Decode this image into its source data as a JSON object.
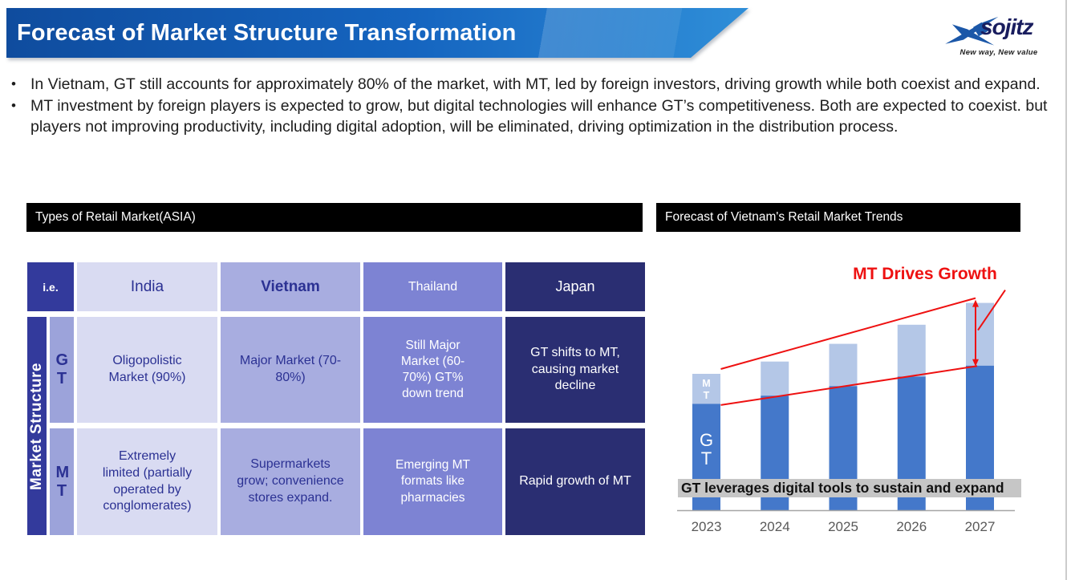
{
  "header": {
    "title": "Forecast of Market Structure Transformation",
    "logo": {
      "brand": "sojitz",
      "tagline": "New way, New value"
    }
  },
  "bullet_char": "•",
  "bullets": [
    "In Vietnam, GT still accounts for approximately 80% of the market, with MT, led by foreign investors, driving growth while both coexist and expand.",
    "MT investment by foreign players is expected to grow, but digital technologies will enhance GT’s competitiveness. Both are expected to coexist. but players not improving productivity, including digital adoption, will be eliminated, driving optimization in the distribution process."
  ],
  "table_section": {
    "title": "Types of Retail Market(ASIA)",
    "corner_label": "i.e.",
    "row_axis_label": "Market Structure",
    "columns": [
      "India",
      "Vietnam",
      "Thailand",
      "Japan"
    ],
    "rows": [
      {
        "label": "GT",
        "cells": [
          "Oligopolistic Market (90%)",
          "Major Market (70-80%)",
          "Still Major Market (60-70%) GT% down trend",
          "GT shifts to MT, causing market decline"
        ]
      },
      {
        "label": "MT",
        "cells": [
          "Extremely limited (partially operated by conglomerates)",
          "Supermarkets grow; convenience stores expand.",
          "Emerging MT formats like pharmacies",
          "Rapid growth of MT"
        ]
      }
    ]
  },
  "chart_section": {
    "title": "Forecast of Vietnam's Retail Market Trends",
    "annotation": "MT Drives Growth",
    "band_text": "GT leverages digital tools to sustain and expand"
  },
  "chart_data": {
    "type": "bar",
    "stacked": true,
    "title": "Forecast of Vietnam's Retail Market Trends",
    "categories": [
      "2023",
      "2024",
      "2025",
      "2026",
      "2027"
    ],
    "series": [
      {
        "name": "GT",
        "values": [
          78,
          84,
          91,
          98,
          106
        ],
        "color": "#4478ca"
      },
      {
        "name": "MT",
        "values": [
          22,
          25,
          31,
          38,
          46
        ],
        "color": "#b4c7e7"
      }
    ],
    "units": "index (2023 total market = 100), estimated from bar heights; no value axis shown",
    "xlabel": "",
    "ylabel": "",
    "ylim": [
      0,
      160
    ],
    "grid": false,
    "legend": "in-bar labels MT (top segment) and GT (bottom segment) on 2023 bar",
    "annotations": [
      "MT Drives Growth (red label with pointer and vertical double arrow marking the 2027 MT segment)",
      "GT leverages digital tools to sustain and expand (gray band across bars)",
      "red trend line along MT segment tops 2023→2027",
      "red trend line along GT segment tops 2023→2027"
    ]
  },
  "colors": {
    "banner_left": "#0f4c9e",
    "banner_right": "#2f8ed8",
    "accent_red": "#ee1111",
    "gt_blue": "#4478ca",
    "mt_light_blue": "#b4c7e7",
    "table_indigo": "#333a9c",
    "table_row_label": "#9ca3da",
    "table_light": "#d9dbf2",
    "table_lavender": "#a8ade0",
    "table_medium_purple": "#7d83d3",
    "table_navy": "#2a2e72",
    "band_gray": "#c6c6c6",
    "axis_gray": "#a6a6a6",
    "year_label_gray": "#595959"
  }
}
